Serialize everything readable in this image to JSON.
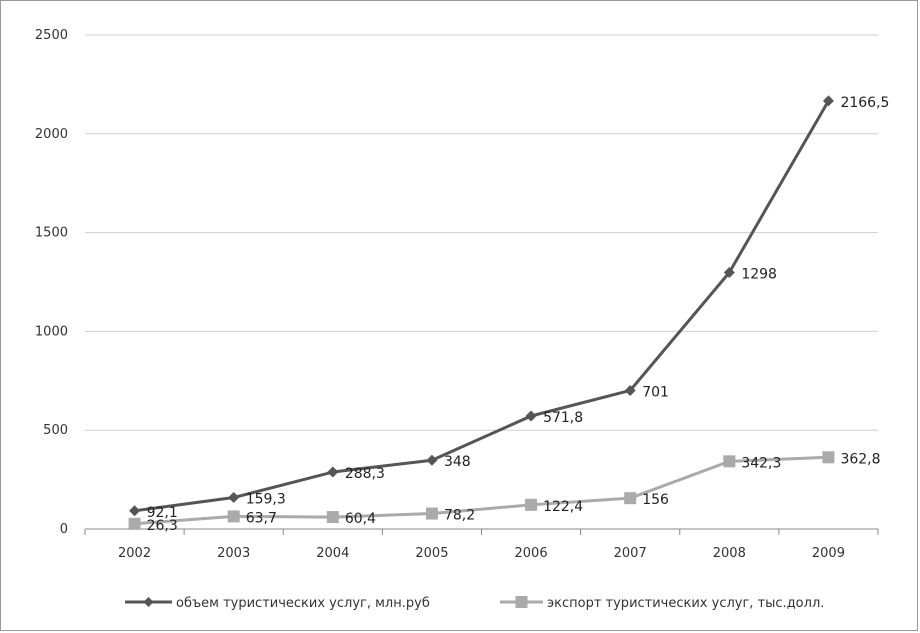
{
  "chart_data": {
    "type": "line",
    "x": [
      "2002",
      "2003",
      "2004",
      "2005",
      "2006",
      "2007",
      "2008",
      "2009"
    ],
    "series": [
      {
        "name": "объем туристических услуг, млн.руб",
        "values": [
          92.1,
          159.3,
          288.3,
          348,
          571.8,
          701,
          1298,
          2166.5
        ],
        "labels": [
          "92,1",
          "159,3",
          "288,3",
          "348",
          "571,8",
          "701",
          "1298",
          "2166,5"
        ],
        "color": "#555555",
        "marker": "diamond"
      },
      {
        "name": "экспорт туристических услуг, тыс.долл.",
        "values": [
          26.3,
          63.7,
          60.4,
          78.2,
          122.4,
          156,
          342.3,
          362.8
        ],
        "labels": [
          "26,3",
          "63,7",
          "60,4",
          "78,2",
          "122,4",
          "156",
          "342,3",
          "362,8"
        ],
        "color": "#aaaaaa",
        "marker": "square"
      }
    ],
    "yticks": [
      "0",
      "500",
      "1000",
      "1500",
      "2000",
      "2500"
    ],
    "ylim": [
      0,
      2500
    ],
    "grid": true,
    "legend": "bottom"
  }
}
